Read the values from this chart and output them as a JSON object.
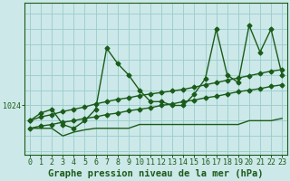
{
  "background_color": "#cce8e8",
  "plot_bg_color": "#cce8e8",
  "grid_color": "#99cccc",
  "line_color": "#1a5c1a",
  "xlabel": "Graphe pression niveau de la mer (hPa)",
  "xlabel_fontsize": 7.5,
  "tick_fontsize": 6.0,
  "ytick_label": "1024",
  "ytick_value": 1024,
  "hours": [
    0,
    1,
    2,
    3,
    4,
    5,
    6,
    7,
    8,
    9,
    10,
    11,
    12,
    13,
    14,
    15,
    16,
    17,
    18,
    19,
    20,
    21,
    22,
    23
  ],
  "series1": [
    1022.0,
    1023.0,
    1023.5,
    1021.5,
    1021.0,
    1022.0,
    1023.5,
    1031.5,
    1029.5,
    1028.0,
    1026.0,
    1024.5,
    1024.5,
    1024.0,
    1024.0,
    1025.5,
    1027.5,
    1034.0,
    1028.0,
    1027.0,
    1034.5,
    1031.0,
    1034.0,
    1028.0
  ],
  "series2": [
    1022.0,
    1022.5,
    1022.8,
    1023.2,
    1023.5,
    1023.8,
    1024.2,
    1024.5,
    1024.8,
    1025.0,
    1025.3,
    1025.5,
    1025.7,
    1025.9,
    1026.1,
    1026.4,
    1026.7,
    1027.0,
    1027.3,
    1027.6,
    1027.9,
    1028.2,
    1028.5,
    1028.7
  ],
  "series3": [
    1021.0,
    1021.3,
    1021.5,
    1021.8,
    1022.0,
    1022.3,
    1022.5,
    1022.8,
    1023.0,
    1023.3,
    1023.5,
    1023.7,
    1024.0,
    1024.2,
    1024.5,
    1024.7,
    1025.0,
    1025.2,
    1025.5,
    1025.8,
    1026.0,
    1026.2,
    1026.5,
    1026.7
  ],
  "series4": [
    1021.0,
    1021.0,
    1021.0,
    1020.0,
    1020.5,
    1020.8,
    1021.0,
    1021.0,
    1021.0,
    1021.0,
    1021.5,
    1021.5,
    1021.5,
    1021.5,
    1021.5,
    1021.5,
    1021.5,
    1021.5,
    1021.5,
    1021.5,
    1022.0,
    1022.0,
    1022.0,
    1022.3
  ],
  "ylim": [
    1017.5,
    1037.5
  ],
  "marker": "D",
  "markersize": 2.5,
  "linewidth": 1.0
}
